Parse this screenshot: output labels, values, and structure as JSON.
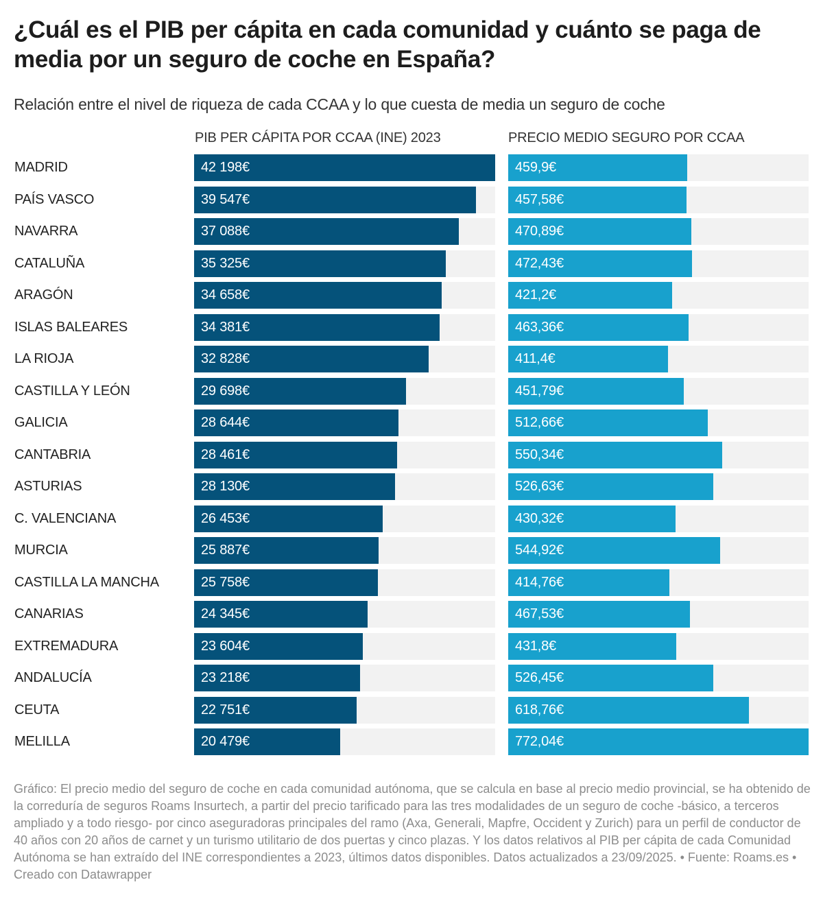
{
  "title": "¿Cuál es el PIB per cápita en cada comunidad y cuánto se paga de media por un seguro de coche en España?",
  "subtitle": "Relación entre el nivel de riqueza de cada CCAA y lo que cuesta de media un seguro de coche",
  "colors": {
    "pib_bar": "#05527a",
    "seguro_bar": "#18a1cd",
    "track": "#f2f2f2"
  },
  "footer": "Gráfico: El precio medio del seguro de coche en cada comunidad autónoma, que se calcula en base al precio medio provincial, se ha obtenido de la correduría de seguros Roams Insurtech, a partir del precio tarificado para las tres modalidades de un seguro de coche -básico, a terceros ampliado y a todo riesgo- por cinco aseguradoras principales del ramo (Axa, Generali, Mapfre, Occident y Zurich) para un perfil de conductor de 40 años con 20 años de carnet y un turismo utilitario de dos puertas y cinco plazas. Y los datos relativos al PIB per cápita de cada Comunidad Autónoma se han extraído del INE correspondientes a 2023, últimos datos disponibles. Datos actualizados a 23/09/2025. • Fuente: Roams.es • Creado con Datawrapper",
  "chart_data": {
    "type": "table",
    "columns": [
      "PIB PER CÁPITA POR CCAA (INE) 2023",
      "PRECIO MEDIO SEGURO POR CCAA"
    ],
    "categories": [
      "MADRID",
      "PAÍS VASCO",
      "NAVARRA",
      "CATALUÑA",
      "ARAGÓN",
      "ISLAS BALEARES",
      "LA RIOJA",
      "CASTILLA Y LEÓN",
      "GALICIA",
      "CANTABRIA",
      "ASTURIAS",
      "C. VALENCIANA",
      "MURCIA",
      "CASTILLA LA MANCHA",
      "CANARIAS",
      "EXTREMADURA",
      "ANDALUCÍA",
      "CEUTA",
      "MELILLA"
    ],
    "series": [
      {
        "name": "PIB PER CÁPITA POR CCAA (INE) 2023",
        "values": [
          42198,
          39547,
          37088,
          35325,
          34658,
          34381,
          32828,
          29698,
          28644,
          28461,
          28130,
          26453,
          25887,
          25758,
          24345,
          23604,
          23218,
          22751,
          20479
        ],
        "labels": [
          "42 198€",
          "39 547€",
          "37 088€",
          "35 325€",
          "34 658€",
          "34 381€",
          "32 828€",
          "29 698€",
          "28 644€",
          "28 461€",
          "28 130€",
          "26 453€",
          "25 887€",
          "25 758€",
          "24 345€",
          "23 604€",
          "23 218€",
          "22 751€",
          "20 479€"
        ]
      },
      {
        "name": "PRECIO MEDIO SEGURO POR CCAA",
        "values": [
          459.9,
          457.58,
          470.89,
          472.43,
          421.2,
          463.36,
          411.4,
          451.79,
          512.66,
          550.34,
          526.63,
          430.32,
          544.92,
          414.76,
          467.53,
          431.8,
          526.45,
          618.76,
          772.04
        ],
        "labels": [
          "459,9€",
          "457,58€",
          "470,89€",
          "472,43€",
          "421,2€",
          "463,36€",
          "411,4€",
          "451,79€",
          "512,66€",
          "550,34€",
          "526,63€",
          "430,32€",
          "544,92€",
          "414,76€",
          "467,53€",
          "431,8€",
          "526,45€",
          "618,76€",
          "772,04€"
        ]
      }
    ]
  }
}
